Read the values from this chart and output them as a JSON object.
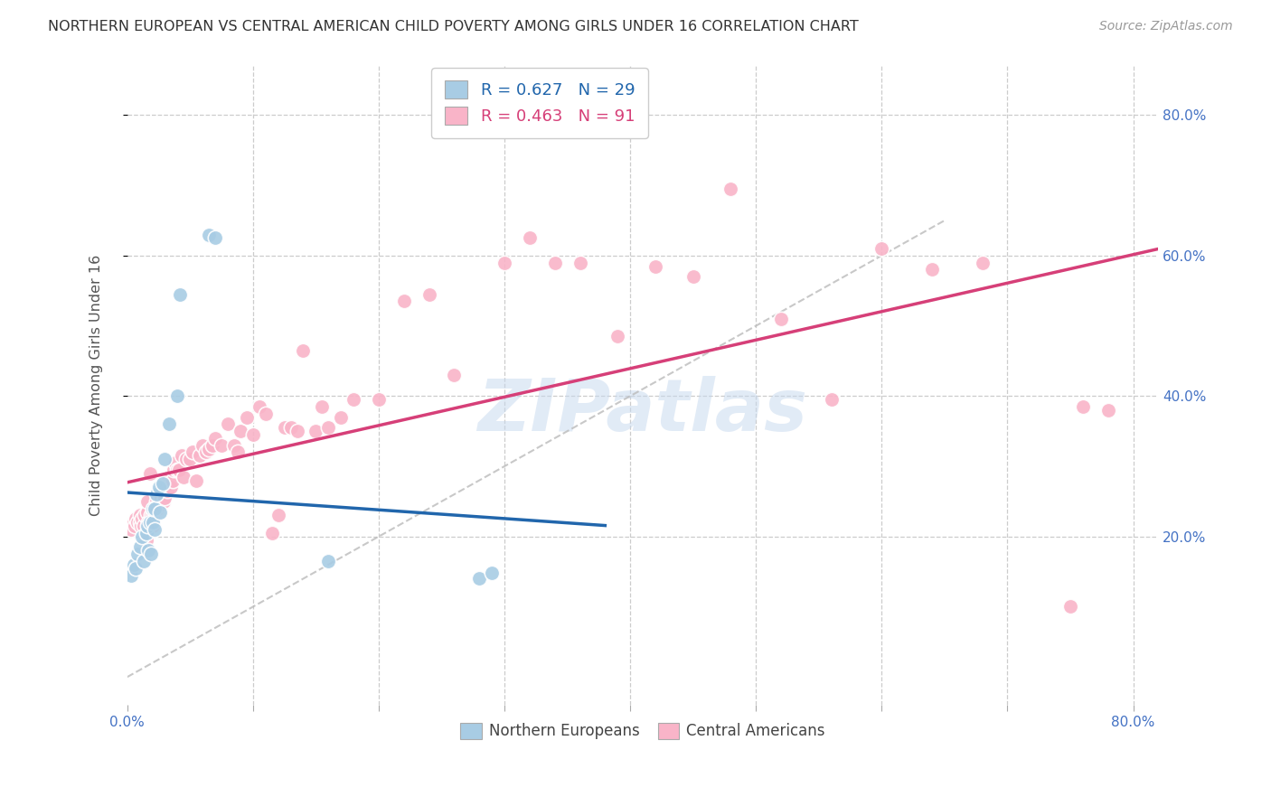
{
  "title": "NORTHERN EUROPEAN VS CENTRAL AMERICAN CHILD POVERTY AMONG GIRLS UNDER 16 CORRELATION CHART",
  "source": "Source: ZipAtlas.com",
  "ylabel": "Child Poverty Among Girls Under 16",
  "xlim": [
    0.0,
    0.82
  ],
  "ylim": [
    -0.04,
    0.87
  ],
  "x_ticks": [
    0.0,
    0.1,
    0.2,
    0.3,
    0.4,
    0.5,
    0.6,
    0.7,
    0.8
  ],
  "y_ticks": [
    0.2,
    0.4,
    0.6,
    0.8
  ],
  "y_tick_labels": [
    "20.0%",
    "40.0%",
    "60.0%",
    "80.0%"
  ],
  "blue_R": 0.627,
  "blue_N": 29,
  "pink_R": 0.463,
  "pink_N": 91,
  "blue_fill": "#a8cce4",
  "pink_fill": "#f9b4c8",
  "blue_line": "#2166ac",
  "pink_line": "#d63f78",
  "dash_color": "#bbbbbb",
  "watermark": "ZIPatlas",
  "bg": "#ffffff",
  "grid_color": "#cccccc",
  "blue_x": [
    0.003,
    0.005,
    0.007,
    0.008,
    0.01,
    0.012,
    0.013,
    0.015,
    0.016,
    0.017,
    0.018,
    0.019,
    0.02,
    0.02,
    0.022,
    0.022,
    0.023,
    0.025,
    0.026,
    0.028,
    0.03,
    0.033,
    0.04,
    0.042,
    0.065,
    0.07,
    0.16,
    0.28,
    0.29
  ],
  "blue_y": [
    0.145,
    0.16,
    0.155,
    0.175,
    0.185,
    0.2,
    0.165,
    0.205,
    0.215,
    0.18,
    0.22,
    0.175,
    0.22,
    0.24,
    0.21,
    0.24,
    0.26,
    0.27,
    0.235,
    0.275,
    0.31,
    0.36,
    0.4,
    0.545,
    0.63,
    0.625,
    0.165,
    0.14,
    0.148
  ],
  "pink_x": [
    0.003,
    0.005,
    0.006,
    0.007,
    0.008,
    0.01,
    0.01,
    0.011,
    0.012,
    0.013,
    0.014,
    0.015,
    0.016,
    0.016,
    0.017,
    0.018,
    0.019,
    0.02,
    0.02,
    0.021,
    0.022,
    0.023,
    0.024,
    0.025,
    0.026,
    0.027,
    0.028,
    0.029,
    0.03,
    0.031,
    0.032,
    0.033,
    0.034,
    0.035,
    0.036,
    0.037,
    0.038,
    0.04,
    0.041,
    0.043,
    0.045,
    0.047,
    0.05,
    0.052,
    0.055,
    0.058,
    0.06,
    0.063,
    0.065,
    0.068,
    0.07,
    0.075,
    0.08,
    0.085,
    0.088,
    0.09,
    0.095,
    0.1,
    0.105,
    0.11,
    0.115,
    0.12,
    0.125,
    0.13,
    0.135,
    0.14,
    0.15,
    0.155,
    0.16,
    0.17,
    0.18,
    0.2,
    0.22,
    0.24,
    0.26,
    0.3,
    0.32,
    0.34,
    0.36,
    0.39,
    0.42,
    0.45,
    0.48,
    0.52,
    0.56,
    0.6,
    0.64,
    0.68,
    0.75,
    0.76,
    0.78
  ],
  "pink_y": [
    0.21,
    0.22,
    0.215,
    0.225,
    0.22,
    0.23,
    0.22,
    0.215,
    0.225,
    0.215,
    0.23,
    0.195,
    0.235,
    0.25,
    0.22,
    0.29,
    0.23,
    0.215,
    0.23,
    0.24,
    0.235,
    0.25,
    0.24,
    0.245,
    0.26,
    0.255,
    0.265,
    0.25,
    0.255,
    0.27,
    0.265,
    0.285,
    0.275,
    0.27,
    0.28,
    0.295,
    0.305,
    0.295,
    0.295,
    0.315,
    0.285,
    0.31,
    0.31,
    0.32,
    0.28,
    0.315,
    0.33,
    0.32,
    0.325,
    0.33,
    0.34,
    0.33,
    0.36,
    0.33,
    0.32,
    0.35,
    0.37,
    0.345,
    0.385,
    0.375,
    0.205,
    0.23,
    0.355,
    0.355,
    0.35,
    0.465,
    0.35,
    0.385,
    0.355,
    0.37,
    0.395,
    0.395,
    0.535,
    0.545,
    0.43,
    0.59,
    0.625,
    0.59,
    0.59,
    0.485,
    0.585,
    0.57,
    0.695,
    0.51,
    0.395,
    0.61,
    0.58,
    0.59,
    0.1,
    0.385,
    0.38
  ]
}
